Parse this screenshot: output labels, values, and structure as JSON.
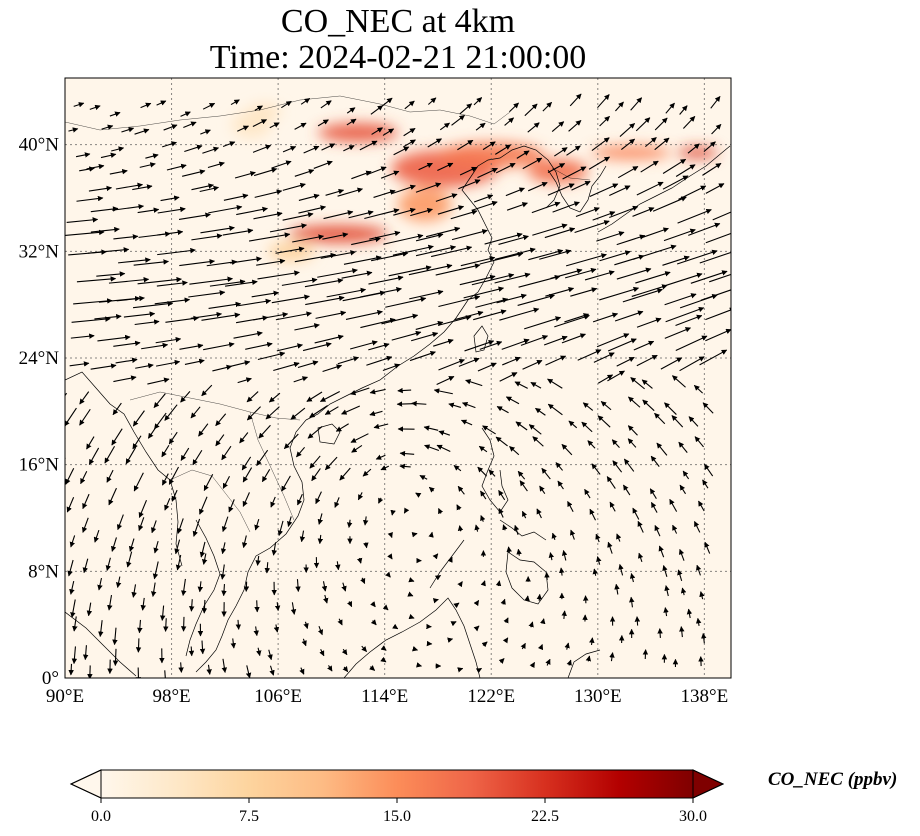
{
  "figure": {
    "title_line1": "CO_NEC at 4km",
    "title_line2": "Time: 2024-02-21 21:00:00"
  },
  "map": {
    "lon_range": [
      90,
      140
    ],
    "lat_range": [
      0,
      45
    ],
    "lon_ticks": [
      {
        "value": 90,
        "label": "90°E"
      },
      {
        "value": 98,
        "label": "98°E"
      },
      {
        "value": 106,
        "label": "106°E"
      },
      {
        "value": 114,
        "label": "114°E"
      },
      {
        "value": 122,
        "label": "122°E"
      },
      {
        "value": 130,
        "label": "130°E"
      },
      {
        "value": 138,
        "label": "138°E"
      }
    ],
    "lat_ticks": [
      {
        "value": 0,
        "label": "0°"
      },
      {
        "value": 8,
        "label": "8°N"
      },
      {
        "value": 16,
        "label": "16°N"
      },
      {
        "value": 24,
        "label": "24°N"
      },
      {
        "value": 32,
        "label": "32°N"
      },
      {
        "value": 40,
        "label": "40°N"
      }
    ],
    "gridlines": true,
    "field_variable": "CO_NEC",
    "wind_vectors": true,
    "concentration_plumes": [
      {
        "lon_center": 112.0,
        "lat_center": 40.9,
        "lon_width": 6.0,
        "lat_width": 1.4,
        "value": 20
      },
      {
        "lon_center": 110.5,
        "lat_center": 33.3,
        "lon_width": 7.5,
        "lat_width": 1.3,
        "value": 21
      },
      {
        "lon_center": 118.5,
        "lat_center": 38.2,
        "lon_width": 8.0,
        "lat_width": 2.8,
        "value": 19
      },
      {
        "lon_center": 122.0,
        "lat_center": 39.2,
        "lon_width": 8.0,
        "lat_width": 1.9,
        "value": 17
      },
      {
        "lon_center": 127.0,
        "lat_center": 38.0,
        "lon_width": 4.5,
        "lat_width": 1.8,
        "value": 18
      },
      {
        "lon_center": 132.5,
        "lat_center": 39.4,
        "lon_width": 6.0,
        "lat_width": 1.0,
        "value": 16
      },
      {
        "lon_center": 137.5,
        "lat_center": 39.4,
        "lon_width": 3.0,
        "lat_width": 0.8,
        "value": 22
      },
      {
        "lon_center": 117.0,
        "lat_center": 35.5,
        "lon_width": 4.0,
        "lat_width": 2.5,
        "value": 14
      },
      {
        "lon_center": 107.0,
        "lat_center": 32.0,
        "lon_width": 3.5,
        "lat_width": 1.5,
        "value": 8
      },
      {
        "lon_center": 105.0,
        "lat_center": 42.5,
        "lon_width": 2.5,
        "lat_width": 1.0,
        "value": 5
      },
      {
        "lon_center": 104.0,
        "lat_center": 41.5,
        "lon_width": 3.0,
        "lat_width": 2.0,
        "value": 4
      }
    ]
  },
  "colorbar": {
    "min": 0.0,
    "max": 30.0,
    "extend": "both",
    "colormap": "OrRd",
    "colormap_stops": [
      "#fff7ec",
      "#fee8c8",
      "#fdd49e",
      "#fdbb84",
      "#fc8d59",
      "#ef6548",
      "#d7301f",
      "#b30000",
      "#7f0000"
    ],
    "ticks": [
      {
        "value": 0.0,
        "label": "0.0"
      },
      {
        "value": 7.5,
        "label": "7.5"
      },
      {
        "value": 15.0,
        "label": "15.0"
      },
      {
        "value": 22.5,
        "label": "22.5"
      },
      {
        "value": 30.0,
        "label": "30.0"
      }
    ],
    "label": "CO_NEC (ppbv)"
  }
}
